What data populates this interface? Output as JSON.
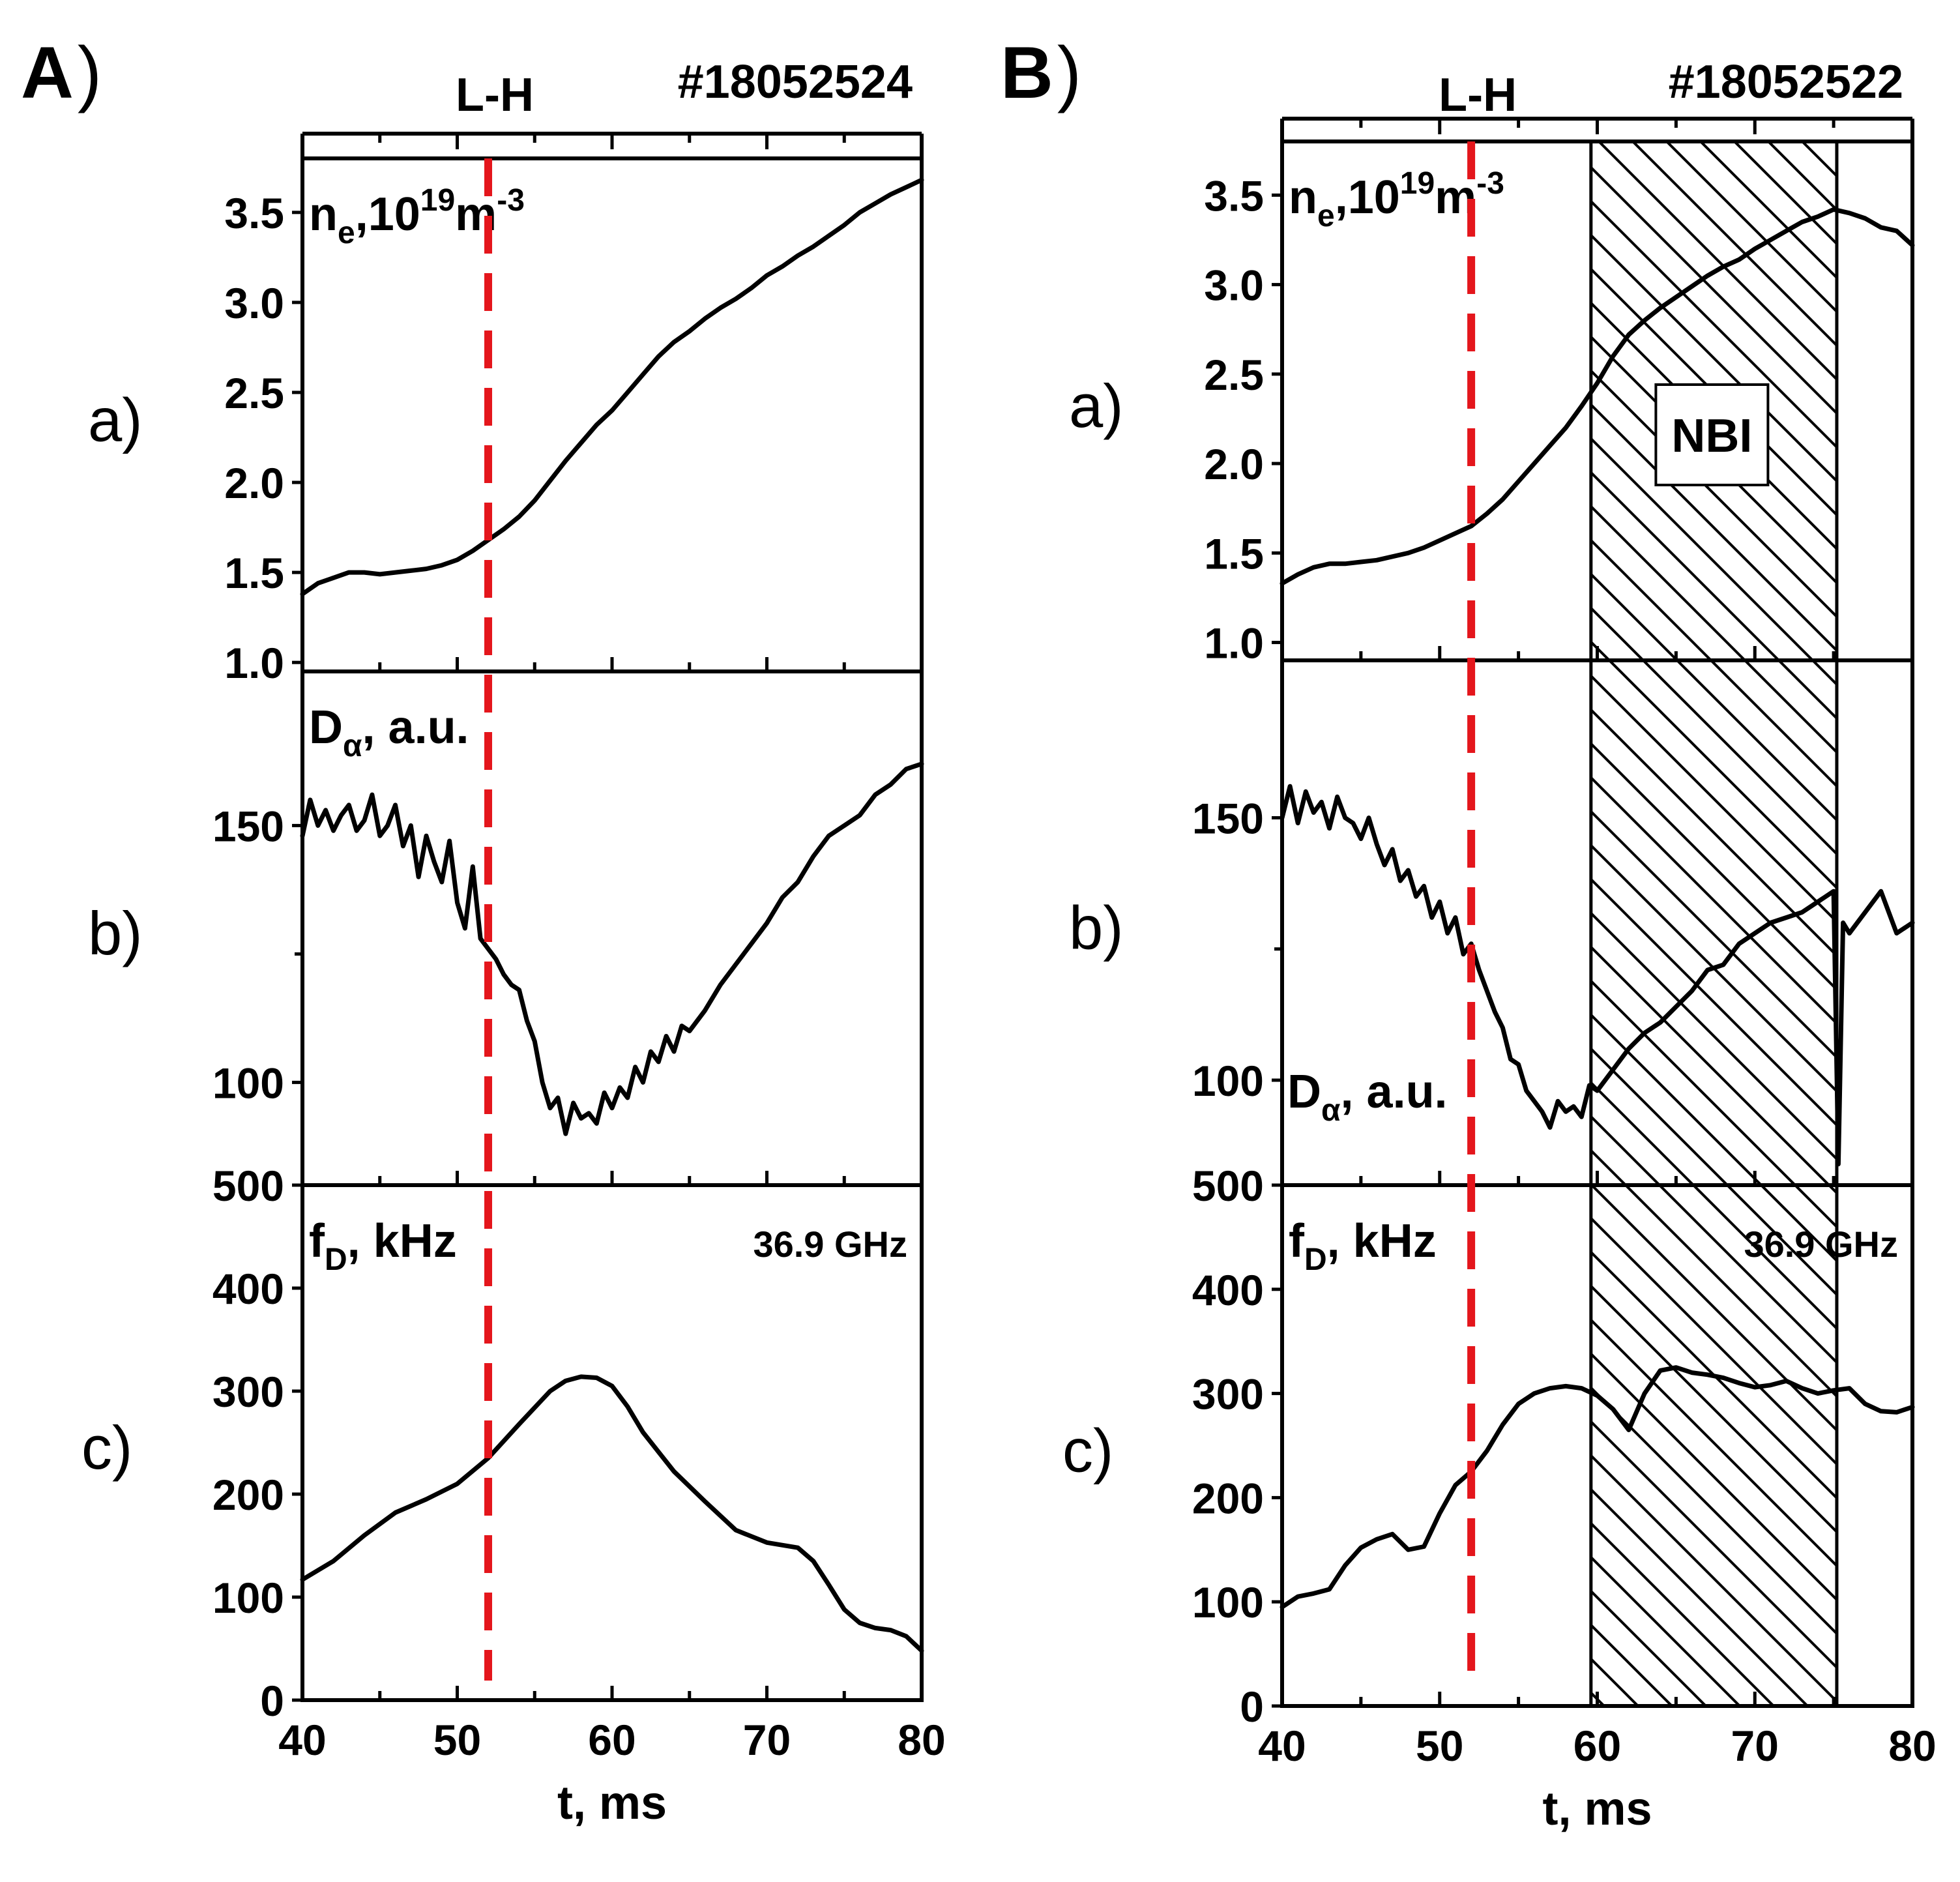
{
  "chart_data": [
    {
      "id": "A",
      "panel_label": "A",
      "panel_paren": ")",
      "shot": "#18052524",
      "lh_label": "L-H",
      "lh_time": 52,
      "type": "line",
      "xlabel": "t, ms",
      "xlim": [
        40,
        80
      ],
      "xticks": [
        "40",
        "50",
        "60",
        "70",
        "80"
      ],
      "subplots": [
        {
          "key": "ne",
          "letter": "a)",
          "ylim": [
            0.95,
            3.8
          ],
          "yticks": [
            "1.0",
            "1.5",
            "2.0",
            "2.5",
            "3.0",
            "3.5"
          ],
          "label_main": "n",
          "label_sub": "e",
          "label_mid": ",10",
          "label_sup1": "19",
          "label_unit": "m",
          "label_sup2": "-3",
          "x": [
            40,
            41,
            42,
            43,
            44,
            45,
            46,
            47,
            48,
            49,
            50,
            51,
            52,
            53,
            54,
            55,
            56,
            57,
            58,
            59,
            60,
            61,
            62,
            63,
            64,
            65,
            66,
            67,
            68,
            69,
            70,
            71,
            72,
            73,
            74,
            75,
            76,
            77,
            78,
            79,
            80
          ],
          "y": [
            1.38,
            1.44,
            1.47,
            1.5,
            1.5,
            1.49,
            1.5,
            1.51,
            1.52,
            1.54,
            1.57,
            1.62,
            1.68,
            1.74,
            1.81,
            1.9,
            2.01,
            2.12,
            2.22,
            2.32,
            2.4,
            2.5,
            2.6,
            2.7,
            2.78,
            2.84,
            2.91,
            2.97,
            3.02,
            3.08,
            3.15,
            3.2,
            3.26,
            3.31,
            3.37,
            3.43,
            3.5,
            3.55,
            3.6,
            3.64,
            3.68
          ]
        },
        {
          "key": "da",
          "letter": "b)",
          "ylim": [
            80,
            180
          ],
          "yticks": [
            "100",
            "150"
          ],
          "label_main": "D",
          "label_sub": "α",
          "label_mid": ", a.u.",
          "x": [
            40,
            40.5,
            41,
            41.5,
            42,
            42.5,
            43,
            43.5,
            44,
            44.5,
            45,
            45.5,
            46,
            46.5,
            47,
            47.5,
            48,
            48.5,
            49,
            49.5,
            50,
            50.5,
            51,
            51.5,
            52,
            52.5,
            53,
            53.5,
            54,
            54.5,
            55,
            55.5,
            56,
            56.5,
            57,
            57.5,
            58,
            58.5,
            59,
            59.5,
            60,
            60.5,
            61,
            61.5,
            62,
            62.5,
            63,
            63.5,
            64,
            64.5,
            65,
            66,
            67,
            68,
            69,
            70,
            71,
            72,
            73,
            74,
            75,
            76,
            77,
            78,
            79,
            80
          ],
          "y": [
            148,
            155,
            150,
            153,
            149,
            152,
            154,
            149,
            151,
            156,
            148,
            150,
            154,
            146,
            150,
            140,
            148,
            143,
            139,
            147,
            135,
            130,
            142,
            128,
            126,
            124,
            121,
            119,
            118,
            112,
            108,
            100,
            95,
            97,
            90,
            96,
            93,
            94,
            92,
            98,
            95,
            99,
            97,
            103,
            100,
            106,
            104,
            109,
            106,
            111,
            110,
            114,
            119,
            123,
            127,
            131,
            136,
            139,
            144,
            148,
            150,
            152,
            156,
            158,
            161,
            162
          ]
        },
        {
          "key": "fd",
          "letter": "c)",
          "ylim": [
            0,
            500
          ],
          "yticks": [
            "0",
            "100",
            "200",
            "300",
            "400",
            "500"
          ],
          "label_main": "f",
          "label_sub": "D",
          "label_mid": ", kHz",
          "annotation": "36.9 GHz",
          "x": [
            40,
            42,
            44,
            46,
            48,
            50,
            52,
            54,
            56,
            57,
            58,
            59,
            60,
            61,
            62,
            64,
            66,
            68,
            70,
            72,
            73,
            74,
            75,
            76,
            77,
            78,
            79,
            80
          ],
          "y": [
            117,
            135,
            160,
            182,
            195,
            210,
            235,
            268,
            300,
            310,
            314,
            313,
            305,
            285,
            260,
            222,
            193,
            165,
            153,
            148,
            135,
            112,
            88,
            75,
            70,
            68,
            62,
            48
          ]
        }
      ]
    },
    {
      "id": "B",
      "panel_label": "B",
      "panel_paren": ")",
      "shot": "#18052522",
      "lh_label": "L-H",
      "lh_time": 52,
      "nbi_label": "NBI",
      "nbi_range": [
        59.6,
        75.2
      ],
      "type": "line",
      "xlabel": "t, ms",
      "xlim": [
        40,
        80
      ],
      "xticks": [
        "40",
        "50",
        "60",
        "70",
        "80"
      ],
      "subplots": [
        {
          "key": "ne",
          "letter": "a)",
          "ylim": [
            0.9,
            3.8
          ],
          "yticks": [
            "1.0",
            "1.5",
            "2.0",
            "2.5",
            "3.0",
            "3.5"
          ],
          "label_main": "n",
          "label_sub": "e",
          "label_mid": ",10",
          "label_sup1": "19",
          "label_unit": "m",
          "label_sup2": "-3",
          "x": [
            40,
            41,
            42,
            43,
            44,
            45,
            46,
            47,
            48,
            49,
            50,
            51,
            52,
            53,
            54,
            55,
            56,
            57,
            58,
            59,
            60,
            61,
            62,
            63,
            64,
            65,
            66,
            67,
            68,
            69,
            70,
            71,
            72,
            73,
            74,
            75,
            76,
            77,
            78,
            79,
            80
          ],
          "y": [
            1.33,
            1.38,
            1.42,
            1.44,
            1.44,
            1.45,
            1.46,
            1.48,
            1.5,
            1.53,
            1.57,
            1.61,
            1.65,
            1.72,
            1.8,
            1.9,
            2.0,
            2.1,
            2.2,
            2.32,
            2.45,
            2.6,
            2.72,
            2.8,
            2.87,
            2.93,
            2.99,
            3.05,
            3.1,
            3.14,
            3.2,
            3.25,
            3.3,
            3.35,
            3.38,
            3.42,
            3.4,
            3.37,
            3.32,
            3.3,
            3.22
          ]
        },
        {
          "key": "da",
          "letter": "b)",
          "ylim": [
            80,
            180
          ],
          "yticks": [
            "100",
            "150"
          ],
          "label_main": "D",
          "label_sub": "α",
          "label_mid": ", a.u.",
          "x": [
            40,
            40.5,
            41,
            41.5,
            42,
            42.5,
            43,
            43.5,
            44,
            44.5,
            45,
            45.5,
            46,
            46.5,
            47,
            47.5,
            48,
            48.5,
            49,
            49.5,
            50,
            50.5,
            51,
            51.5,
            52,
            52.5,
            53,
            53.5,
            54,
            54.5,
            55,
            55.5,
            56,
            56.5,
            57,
            57.5,
            58,
            58.5,
            59,
            59.5,
            60,
            61,
            62,
            63,
            64,
            65,
            66,
            67,
            68,
            69,
            70,
            71,
            72,
            73,
            74,
            75,
            75.3,
            75.6,
            76,
            77,
            78,
            79,
            80
          ],
          "y": [
            150,
            156,
            149,
            155,
            151,
            153,
            148,
            154,
            150,
            149,
            146,
            150,
            145,
            141,
            144,
            138,
            140,
            135,
            137,
            131,
            134,
            128,
            131,
            124,
            126,
            121,
            117,
            113,
            110,
            104,
            103,
            98,
            96,
            94,
            91,
            96,
            94,
            95,
            93,
            99,
            98,
            102,
            106,
            109,
            111,
            114,
            117,
            121,
            122,
            126,
            128,
            130,
            131,
            132,
            134,
            136,
            84,
            130,
            128,
            132,
            136,
            128,
            130
          ]
        },
        {
          "key": "fd",
          "letter": "c)",
          "ylim": [
            0,
            500
          ],
          "yticks": [
            "0",
            "100",
            "200",
            "300",
            "400",
            "500"
          ],
          "label_main": "f",
          "label_sub": "D",
          "label_mid": ", kHz",
          "annotation": "36.9 GHz",
          "x": [
            40,
            41,
            42,
            43,
            44,
            45,
            46,
            47,
            48,
            49,
            50,
            51,
            52,
            53,
            54,
            55,
            56,
            57,
            58,
            59,
            60,
            61,
            62,
            63,
            64,
            65,
            66,
            67,
            68,
            69,
            70,
            71,
            72,
            73,
            74,
            75,
            76,
            77,
            78,
            79,
            80
          ],
          "y": [
            95,
            105,
            108,
            112,
            135,
            152,
            160,
            165,
            150,
            153,
            185,
            212,
            225,
            245,
            270,
            290,
            300,
            305,
            307,
            305,
            298,
            285,
            265,
            300,
            322,
            325,
            320,
            318,
            315,
            310,
            306,
            308,
            312,
            305,
            300,
            303,
            305,
            290,
            283,
            282,
            287
          ]
        }
      ]
    }
  ]
}
